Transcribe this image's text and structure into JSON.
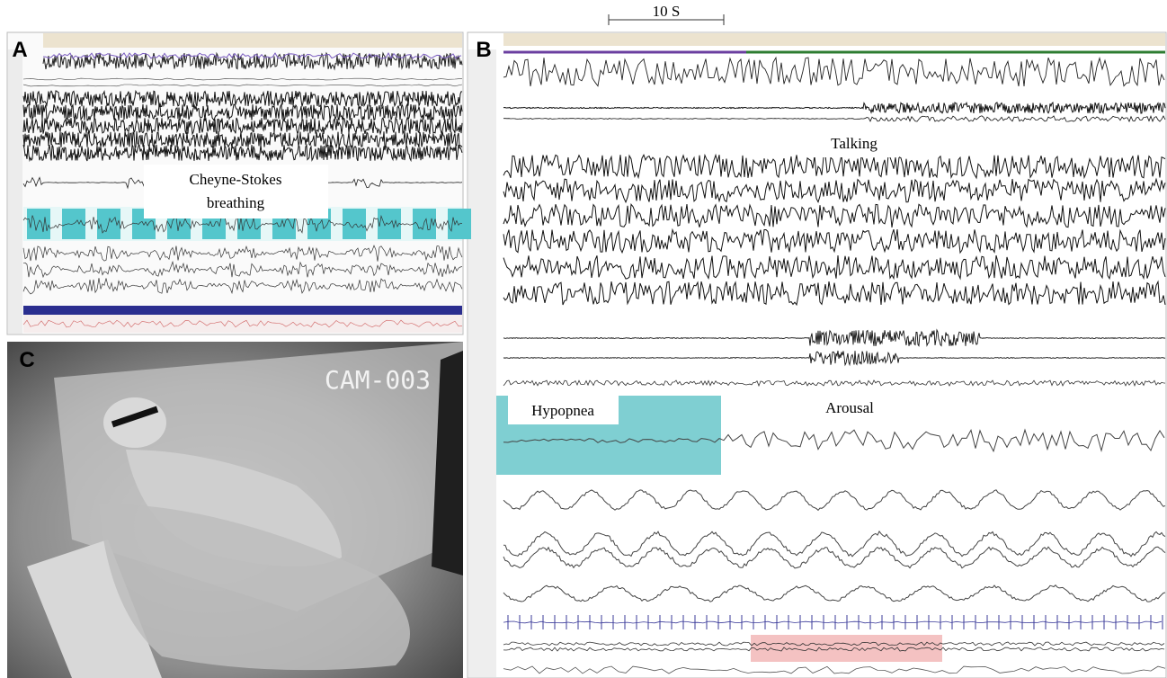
{
  "panel_a": {
    "label": "A",
    "annotation_lines": [
      "Cheyne-Stokes",
      "breathing"
    ]
  },
  "panel_b": {
    "label": "B",
    "time_scale": "10 S",
    "annotations": {
      "talking": "Talking",
      "hypopnea": "Hypopnea",
      "arousal": "Arousal"
    }
  },
  "panel_c": {
    "label": "C",
    "camera_id": "CAM-003"
  }
}
